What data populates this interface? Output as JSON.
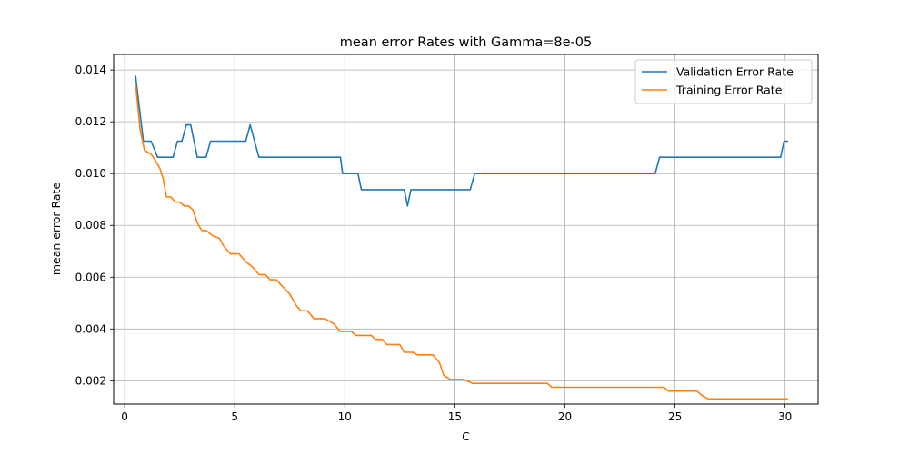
{
  "chart_data": {
    "type": "line",
    "title": "mean error Rates with Gamma=8e-05",
    "xlabel": "C",
    "ylabel": "mean error Rate",
    "xlim": [
      -0.5,
      31.5
    ],
    "ylim": [
      0.0011,
      0.0146
    ],
    "xticks": [
      0,
      5,
      10,
      15,
      20,
      25,
      30
    ],
    "xtick_labels": [
      "0",
      "5",
      "10",
      "15",
      "20",
      "25",
      "30"
    ],
    "yticks": [
      0.002,
      0.004,
      0.006,
      0.008,
      0.01,
      0.012,
      0.014
    ],
    "ytick_labels": [
      "0.002",
      "0.004",
      "0.006",
      "0.008",
      "0.010",
      "0.012",
      "0.014"
    ],
    "grid": true,
    "legend_position": "top-right",
    "series": [
      {
        "name": "Validation Error Rate",
        "color": "#1f77b4",
        "points": [
          [
            0.5,
            0.01375
          ],
          [
            0.85,
            0.01125
          ],
          [
            1.2,
            0.01125
          ],
          [
            1.5,
            0.01063
          ],
          [
            2.2,
            0.01063
          ],
          [
            2.4,
            0.01125
          ],
          [
            2.6,
            0.01125
          ],
          [
            2.8,
            0.01188
          ],
          [
            3.0,
            0.01188
          ],
          [
            3.3,
            0.01063
          ],
          [
            3.7,
            0.01063
          ],
          [
            3.9,
            0.01125
          ],
          [
            5.5,
            0.01125
          ],
          [
            5.7,
            0.01188
          ],
          [
            6.1,
            0.01063
          ],
          [
            9.8,
            0.01063
          ],
          [
            9.9,
            0.01
          ],
          [
            10.6,
            0.01
          ],
          [
            10.75,
            0.00938
          ],
          [
            12.7,
            0.00938
          ],
          [
            12.85,
            0.00875
          ],
          [
            13.0,
            0.00938
          ],
          [
            15.7,
            0.00938
          ],
          [
            15.9,
            0.01
          ],
          [
            24.1,
            0.01
          ],
          [
            24.3,
            0.01063
          ],
          [
            29.8,
            0.01063
          ],
          [
            29.95,
            0.01125
          ],
          [
            30.1,
            0.01125
          ]
        ]
      },
      {
        "name": "Training Error Rate",
        "color": "#ff7f0e",
        "points": [
          [
            0.5,
            0.01345
          ],
          [
            0.7,
            0.0117
          ],
          [
            0.9,
            0.0109
          ],
          [
            1.2,
            0.01075
          ],
          [
            1.4,
            0.0105
          ],
          [
            1.6,
            0.0102
          ],
          [
            1.75,
            0.0098
          ],
          [
            1.9,
            0.0091
          ],
          [
            2.1,
            0.0091
          ],
          [
            2.3,
            0.0089
          ],
          [
            2.5,
            0.0089
          ],
          [
            2.7,
            0.00875
          ],
          [
            2.9,
            0.00875
          ],
          [
            3.1,
            0.0086
          ],
          [
            3.3,
            0.0081
          ],
          [
            3.5,
            0.0078
          ],
          [
            3.7,
            0.0078
          ],
          [
            4.0,
            0.0076
          ],
          [
            4.3,
            0.0075
          ],
          [
            4.5,
            0.0072
          ],
          [
            4.8,
            0.0069
          ],
          [
            5.2,
            0.0069
          ],
          [
            5.5,
            0.0066
          ],
          [
            5.8,
            0.0064
          ],
          [
            6.1,
            0.0061
          ],
          [
            6.4,
            0.0061
          ],
          [
            6.6,
            0.0059
          ],
          [
            6.9,
            0.0059
          ],
          [
            7.1,
            0.0057
          ],
          [
            7.5,
            0.00535
          ],
          [
            7.8,
            0.0049
          ],
          [
            8.0,
            0.0047
          ],
          [
            8.3,
            0.0047
          ],
          [
            8.6,
            0.0044
          ],
          [
            9.1,
            0.0044
          ],
          [
            9.5,
            0.0042
          ],
          [
            9.8,
            0.0039
          ],
          [
            10.3,
            0.0039
          ],
          [
            10.5,
            0.00375
          ],
          [
            11.2,
            0.00375
          ],
          [
            11.4,
            0.0036
          ],
          [
            11.7,
            0.0036
          ],
          [
            11.9,
            0.0034
          ],
          [
            12.5,
            0.0034
          ],
          [
            12.7,
            0.0031
          ],
          [
            13.1,
            0.0031
          ],
          [
            13.3,
            0.003
          ],
          [
            14.0,
            0.003
          ],
          [
            14.3,
            0.0027
          ],
          [
            14.5,
            0.0022
          ],
          [
            14.8,
            0.00205
          ],
          [
            15.4,
            0.00205
          ],
          [
            15.8,
            0.0019
          ],
          [
            19.2,
            0.0019
          ],
          [
            19.4,
            0.00175
          ],
          [
            24.5,
            0.00175
          ],
          [
            24.7,
            0.0016
          ],
          [
            26.0,
            0.0016
          ],
          [
            26.2,
            0.00145
          ],
          [
            26.5,
            0.0013
          ],
          [
            30.1,
            0.0013
          ]
        ]
      }
    ]
  }
}
